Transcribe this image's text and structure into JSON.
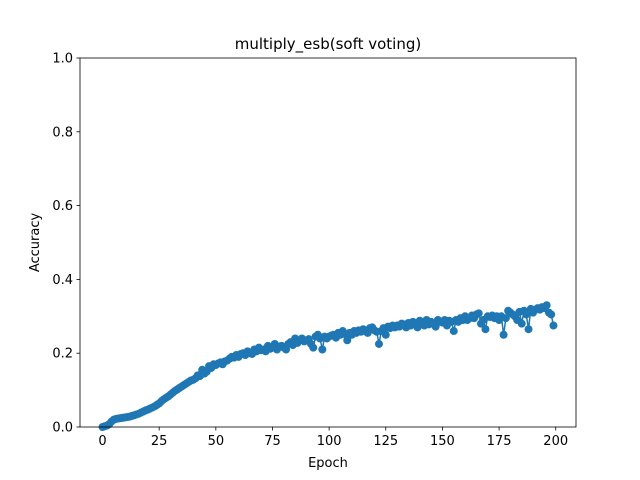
{
  "chart_data": {
    "type": "line",
    "title": "multiply_esb(soft voting)",
    "x_label": "Epoch",
    "y_label": "Accuracy",
    "x": [
      0,
      1,
      2,
      3,
      4,
      5,
      6,
      7,
      8,
      9,
      10,
      11,
      12,
      13,
      14,
      15,
      16,
      17,
      18,
      19,
      20,
      21,
      22,
      23,
      24,
      25,
      26,
      27,
      28,
      29,
      30,
      31,
      32,
      33,
      34,
      35,
      36,
      37,
      38,
      39,
      40,
      41,
      42,
      43,
      44,
      45,
      46,
      47,
      48,
      49,
      50,
      51,
      52,
      53,
      54,
      55,
      56,
      57,
      58,
      59,
      60,
      61,
      62,
      63,
      64,
      65,
      66,
      67,
      68,
      69,
      70,
      71,
      72,
      73,
      74,
      75,
      76,
      77,
      78,
      79,
      80,
      81,
      82,
      83,
      84,
      85,
      86,
      87,
      88,
      89,
      90,
      91,
      92,
      93,
      94,
      95,
      96,
      97,
      98,
      99,
      100,
      101,
      102,
      103,
      104,
      105,
      106,
      107,
      108,
      109,
      110,
      111,
      112,
      113,
      114,
      115,
      116,
      117,
      118,
      119,
      120,
      121,
      122,
      123,
      124,
      125,
      126,
      127,
      128,
      129,
      130,
      131,
      132,
      133,
      134,
      135,
      136,
      137,
      138,
      139,
      140,
      141,
      142,
      143,
      144,
      145,
      146,
      147,
      148,
      149,
      150,
      151,
      152,
      153,
      154,
      155,
      156,
      157,
      158,
      159,
      160,
      161,
      162,
      163,
      164,
      165,
      166,
      167,
      168,
      169,
      170,
      171,
      172,
      173,
      174,
      175,
      176,
      177,
      178,
      179,
      180,
      181,
      182,
      183,
      184,
      185,
      186,
      187,
      188,
      189,
      190,
      191,
      192,
      193,
      194,
      195,
      196,
      197,
      198,
      199
    ],
    "series": [
      {
        "color": "#1f77b4",
        "values": [
          0.0,
          0.002,
          0.004,
          0.008,
          0.015,
          0.02,
          0.022,
          0.023,
          0.024,
          0.025,
          0.026,
          0.027,
          0.028,
          0.03,
          0.032,
          0.034,
          0.036,
          0.039,
          0.042,
          0.045,
          0.047,
          0.05,
          0.053,
          0.056,
          0.06,
          0.064,
          0.07,
          0.075,
          0.079,
          0.083,
          0.088,
          0.093,
          0.098,
          0.102,
          0.106,
          0.11,
          0.114,
          0.118,
          0.122,
          0.126,
          0.128,
          0.132,
          0.14,
          0.138,
          0.155,
          0.145,
          0.15,
          0.165,
          0.16,
          0.17,
          0.168,
          0.172,
          0.175,
          0.17,
          0.178,
          0.18,
          0.185,
          0.19,
          0.188,
          0.195,
          0.19,
          0.198,
          0.2,
          0.195,
          0.205,
          0.2,
          0.198,
          0.21,
          0.205,
          0.215,
          0.208,
          0.21,
          0.205,
          0.22,
          0.212,
          0.215,
          0.225,
          0.21,
          0.218,
          0.22,
          0.215,
          0.21,
          0.225,
          0.23,
          0.222,
          0.24,
          0.228,
          0.235,
          0.24,
          0.232,
          0.235,
          0.238,
          0.225,
          0.215,
          0.245,
          0.25,
          0.24,
          0.21,
          0.245,
          0.24,
          0.245,
          0.248,
          0.25,
          0.242,
          0.255,
          0.25,
          0.26,
          0.252,
          0.235,
          0.255,
          0.25,
          0.26,
          0.255,
          0.262,
          0.258,
          0.265,
          0.26,
          0.255,
          0.268,
          0.27,
          0.262,
          0.258,
          0.225,
          0.26,
          0.268,
          0.25,
          0.272,
          0.268,
          0.275,
          0.27,
          0.275,
          0.272,
          0.28,
          0.278,
          0.27,
          0.282,
          0.275,
          0.285,
          0.28,
          0.27,
          0.288,
          0.282,
          0.275,
          0.29,
          0.278,
          0.285,
          0.28,
          0.272,
          0.29,
          0.285,
          0.283,
          0.29,
          0.275,
          0.288,
          0.285,
          0.26,
          0.29,
          0.285,
          0.295,
          0.29,
          0.3,
          0.29,
          0.295,
          0.302,
          0.295,
          0.305,
          0.308,
          0.28,
          0.29,
          0.265,
          0.3,
          0.298,
          0.302,
          0.295,
          0.3,
          0.29,
          0.3,
          0.25,
          0.295,
          0.315,
          0.31,
          0.305,
          0.3,
          0.29,
          0.312,
          0.28,
          0.315,
          0.305,
          0.265,
          0.32,
          0.31,
          0.318,
          0.322,
          0.318,
          0.325,
          0.322,
          0.33,
          0.31,
          0.305,
          0.275
        ]
      }
    ],
    "xlim": [
      -9.95,
      208.95
    ],
    "xticks": [
      0,
      25,
      50,
      75,
      100,
      125,
      150,
      175,
      200
    ],
    "ylim": [
      0,
      1
    ],
    "yticks": [
      {
        "value": 0,
        "label": "0.0"
      },
      0.2,
      0.4,
      0.6,
      0.8,
      {
        "value": 1,
        "label": "1.0"
      }
    ],
    "grid": false,
    "marker": "o"
  }
}
